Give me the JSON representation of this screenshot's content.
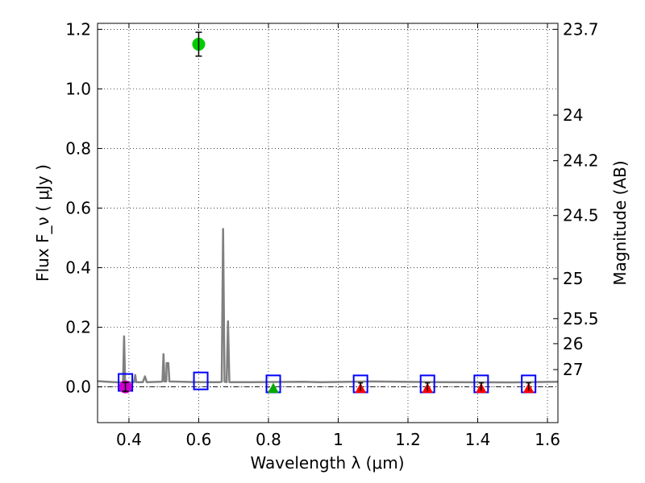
{
  "chart_data": {
    "type": "scatter",
    "title": "",
    "xlabel": "Wavelength  λ (μm)",
    "ylabel": "Flux  F_ν  ( μJy )",
    "ylabel_right": "Magnitude (AB)",
    "xlim": [
      0.31,
      1.63
    ],
    "ylim": [
      -0.12,
      1.22
    ],
    "grid": true,
    "x_ticks": [
      {
        "value": 0.4,
        "label": "0.4"
      },
      {
        "value": 0.6,
        "label": "0.6"
      },
      {
        "value": 0.8,
        "label": "0.8"
      },
      {
        "value": 1.0,
        "label": "1"
      },
      {
        "value": 1.2,
        "label": "1.2"
      },
      {
        "value": 1.4,
        "label": "1.4"
      },
      {
        "value": 1.6,
        "label": "1.6"
      }
    ],
    "y_ticks": [
      {
        "value": 0.0,
        "label": "0.0"
      },
      {
        "value": 0.2,
        "label": "0.2"
      },
      {
        "value": 0.4,
        "label": "0.4"
      },
      {
        "value": 0.6,
        "label": "0.6"
      },
      {
        "value": 0.8,
        "label": "0.8"
      },
      {
        "value": 1.0,
        "label": "1.0"
      },
      {
        "value": 1.2,
        "label": "1.2"
      }
    ],
    "right_ticks": [
      {
        "flux": 1.2,
        "label": "23.7"
      },
      {
        "flux": 0.912,
        "label": "24"
      },
      {
        "flux": 0.759,
        "label": "24.2"
      },
      {
        "flux": 0.575,
        "label": "24.5"
      },
      {
        "flux": 0.363,
        "label": "25"
      },
      {
        "flux": 0.229,
        "label": "25.5"
      },
      {
        "flux": 0.145,
        "label": "26"
      },
      {
        "flux": 0.058,
        "label": "27"
      }
    ],
    "series": [
      {
        "name": "model spectrum",
        "kind": "line",
        "color": "#808080",
        "points": [
          [
            0.31,
            0.019
          ],
          [
            0.37,
            0.015
          ],
          [
            0.38,
            0.015
          ],
          [
            0.383,
            0.013
          ],
          [
            0.386,
            0.17
          ],
          [
            0.389,
            0.013
          ],
          [
            0.41,
            0.016
          ],
          [
            0.415,
            0.016
          ],
          [
            0.418,
            0.04
          ],
          [
            0.421,
            0.016
          ],
          [
            0.44,
            0.016
          ],
          [
            0.446,
            0.035
          ],
          [
            0.451,
            0.016
          ],
          [
            0.49,
            0.017
          ],
          [
            0.496,
            0.018
          ],
          [
            0.499,
            0.11
          ],
          [
            0.502,
            0.018
          ],
          [
            0.507,
            0.018
          ],
          [
            0.508,
            0.08
          ],
          [
            0.513,
            0.08
          ],
          [
            0.516,
            0.018
          ],
          [
            0.6,
            0.016
          ],
          [
            0.66,
            0.016
          ],
          [
            0.666,
            0.017
          ],
          [
            0.67,
            0.53
          ],
          [
            0.674,
            0.017
          ],
          [
            0.68,
            0.016
          ],
          [
            0.684,
            0.22
          ],
          [
            0.688,
            0.016
          ],
          [
            0.75,
            0.016
          ],
          [
            0.9,
            0.017
          ],
          [
            0.95,
            0.016
          ],
          [
            1.1,
            0.018
          ],
          [
            1.3,
            0.016
          ],
          [
            1.5,
            0.015
          ],
          [
            1.63,
            0.017
          ]
        ]
      },
      {
        "name": "model photometry",
        "kind": "open-square",
        "color": "#0000ff",
        "points": [
          [
            0.39,
            0.015
          ],
          [
            0.606,
            0.02
          ],
          [
            0.814,
            0.01
          ],
          [
            1.064,
            0.01
          ],
          [
            1.256,
            0.01
          ],
          [
            1.41,
            0.01
          ],
          [
            1.546,
            0.01
          ]
        ]
      },
      {
        "name": "observed flux (green)",
        "kind": "circle",
        "color": "#00cc00",
        "points": [
          [
            0.6,
            1.15,
            0.04
          ]
        ]
      },
      {
        "name": "observed flux (magenta)",
        "kind": "circle",
        "color": "#cc00cc",
        "points": [
          [
            0.39,
            0.0,
            0.015
          ]
        ]
      },
      {
        "name": "upper limit (green)",
        "kind": "triangle",
        "color": "#00aa00",
        "points": [
          [
            0.814,
            0.0,
            0.0
          ]
        ]
      },
      {
        "name": "upper limits (red)",
        "kind": "triangle",
        "color": "#ff0000",
        "points": [
          [
            1.064,
            0.0,
            0.008
          ],
          [
            1.256,
            0.0,
            0.008
          ],
          [
            1.41,
            0.0,
            0.008
          ],
          [
            1.546,
            0.0,
            0.008
          ]
        ]
      }
    ]
  }
}
